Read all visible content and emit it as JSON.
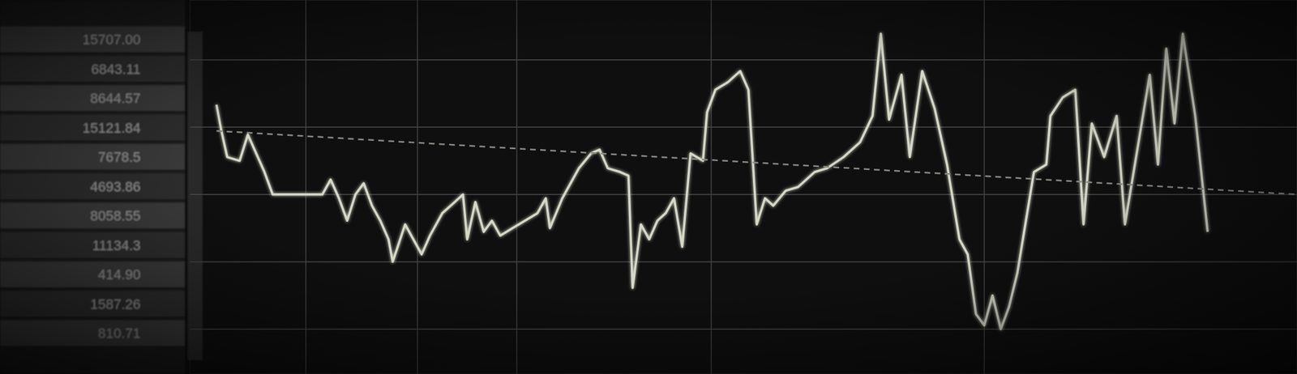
{
  "chart_data": {
    "type": "line",
    "x": [
      262,
      268,
      275,
      290,
      300,
      310,
      320,
      330,
      345,
      390,
      400,
      410,
      420,
      430,
      440,
      450,
      460,
      470,
      475,
      490,
      500,
      510,
      520,
      535,
      550,
      560,
      565,
      575,
      585,
      595,
      605,
      620,
      635,
      650,
      660,
      665,
      680,
      700,
      715,
      725,
      735,
      750,
      760,
      765,
      775,
      785,
      795,
      805,
      815,
      825,
      835,
      850,
      855,
      865,
      880,
      895,
      905,
      915,
      925,
      935,
      950,
      965,
      985,
      1000,
      1020,
      1040,
      1055,
      1065,
      1075,
      1090,
      1100,
      1115,
      1130,
      1145,
      1160,
      1170,
      1180,
      1190,
      1200,
      1210,
      1220,
      1230,
      1250,
      1265,
      1270,
      1285,
      1300,
      1310,
      1320,
      1335,
      1350,
      1360,
      1375,
      1390,
      1400,
      1410,
      1420,
      1430,
      1445,
      1460
    ],
    "series": [
      {
        "color": "#d6d8c8",
        "line_style": "solid",
        "values": [
          72,
          65,
          58,
          57,
          64,
          59,
          54,
          48,
          48,
          48,
          52,
          47,
          41,
          48,
          51,
          45,
          41,
          36,
          30,
          40,
          36,
          32,
          37,
          43,
          46,
          48,
          36,
          46,
          38,
          41,
          37,
          39,
          41,
          43,
          47,
          39,
          47,
          55,
          59,
          60,
          55,
          54,
          53,
          23,
          40,
          36,
          41,
          43,
          47,
          34,
          59,
          57,
          70,
          76,
          78,
          81,
          76,
          40,
          47,
          45,
          49,
          50,
          54,
          55,
          58,
          62,
          69,
          91,
          68,
          80,
          58,
          81,
          71,
          56,
          36,
          32,
          16,
          13,
          21,
          12,
          18,
          27,
          54,
          56,
          69,
          74,
          76,
          40,
          67,
          58,
          69,
          40,
          60,
          80,
          56,
          87,
          67,
          91,
          69,
          38
        ]
      },
      {
        "color": "#8a8a84",
        "line_style": "dashed",
        "x": [
          262,
          1568
        ],
        "values": [
          65,
          48
        ]
      }
    ],
    "xlim": [
      230,
      1568
    ],
    "xticks": [
      370,
      505,
      625,
      860,
      1190
    ],
    "ylim": [
      0,
      100
    ],
    "yticks": [
      12,
      30,
      48,
      66,
      84
    ],
    "grid": true,
    "tick_labels": false
  },
  "side_table": {
    "rows": [
      "15707.00",
      "6843.11",
      "8644.57",
      "15121.84",
      "7678.5",
      "4693.86",
      "8058.55",
      "11134.3",
      "414.90",
      "1587.26",
      "810.71"
    ]
  }
}
